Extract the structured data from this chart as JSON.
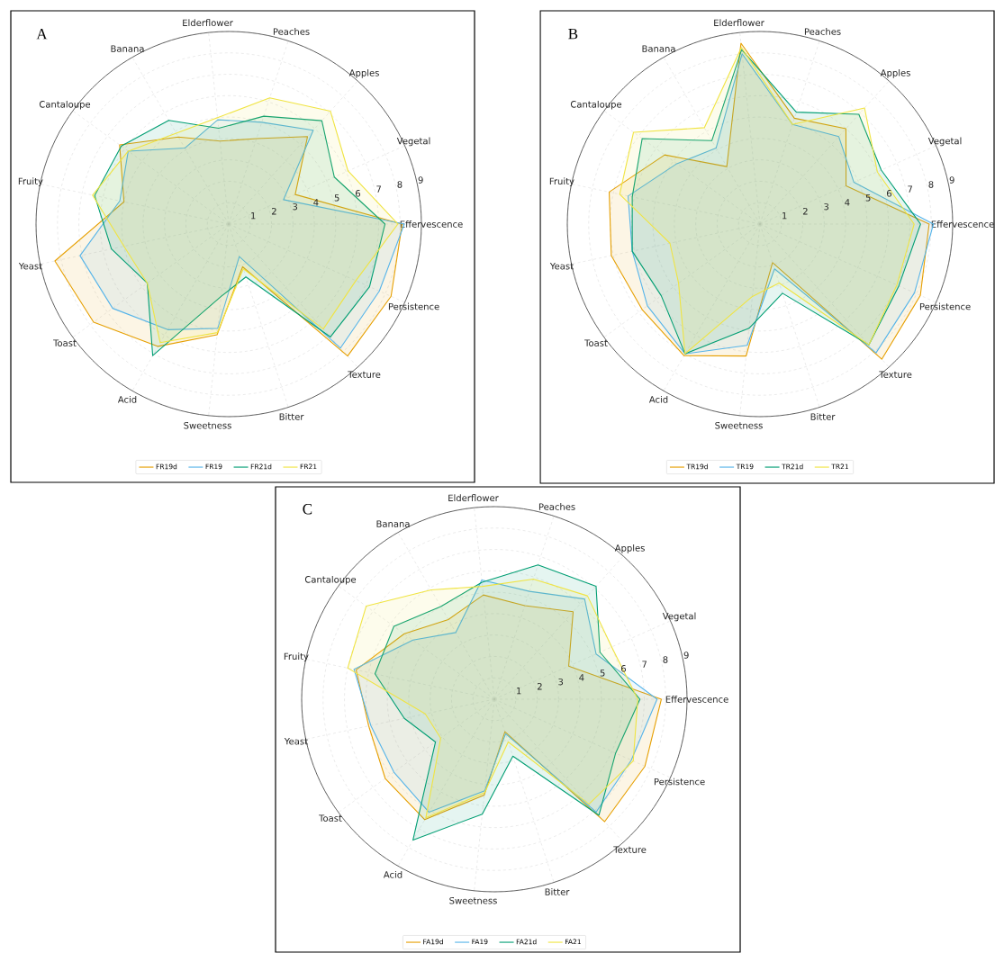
{
  "chart_data": [
    {
      "type": "radar",
      "title": "A",
      "categories": [
        "Elderflower",
        "Peaches",
        "Apples",
        "Vegetal",
        "Effervescence",
        "Persistence",
        "Texture",
        "Bitter",
        "Sweetness",
        "Acid",
        "Toast",
        "Yeast",
        "Fruity",
        "Cantaloupe",
        "Banana"
      ],
      "ylim": [
        0,
        9
      ],
      "yticks": [
        1,
        2,
        3,
        4,
        5,
        6,
        7,
        8,
        9
      ],
      "grid": true,
      "legend": "bottom",
      "series": [
        {
          "name": "FR19d",
          "color": "#e69f00",
          "values": [
            3.9,
            4.2,
            5.5,
            3.4,
            8.1,
            8.3,
            8.3,
            2.1,
            5.2,
            6.6,
            7.8,
            8.3,
            5.0,
            6.3,
            4.7
          ]
        },
        {
          "name": "FR19",
          "color": "#56b4e9",
          "values": [
            4.9,
            5.0,
            5.9,
            2.8,
            8.2,
            7.7,
            7.8,
            1.6,
            4.9,
            5.7,
            6.7,
            7.1,
            5.2,
            5.8,
            4.1
          ]
        },
        {
          "name": "FR21d",
          "color": "#009e73",
          "values": [
            4.5,
            5.3,
            6.5,
            5.4,
            7.3,
            7.2,
            7.1,
            2.6,
            3.4,
            7.1,
            4.7,
            5.6,
            6.4,
            6.2,
            5.6
          ]
        },
        {
          "name": "FR21",
          "color": "#f0e442",
          "values": [
            5.0,
            6.2,
            7.1,
            6.1,
            7.9,
            6.5,
            6.6,
            2.2,
            5.1,
            6.4,
            4.7,
            5.0,
            6.5,
            5.8,
            4.9
          ]
        }
      ]
    },
    {
      "type": "radar",
      "title": "B",
      "categories": [
        "Elderflower",
        "Peaches",
        "Apples",
        "Vegetal",
        "Effervescence",
        "Persistence",
        "Texture",
        "Bitter",
        "Sweetness",
        "Acid",
        "Toast",
        "Yeast",
        "Fruity",
        "Cantaloupe",
        "Banana"
      ],
      "ylim": [
        0,
        9
      ],
      "yticks": [
        1,
        2,
        3,
        4,
        5,
        6,
        7,
        8,
        9
      ],
      "grid": true,
      "legend": "bottom",
      "series": [
        {
          "name": "TR19d",
          "color": "#e69f00",
          "values": [
            8.5,
            5.2,
            6.0,
            4.4,
            7.9,
            8.2,
            8.5,
            1.9,
            6.2,
            7.1,
            6.8,
            7.1,
            7.2,
            5.5,
            3.1
          ]
        },
        {
          "name": "TR19",
          "color": "#56b4e9",
          "values": [
            8.0,
            4.9,
            5.5,
            4.8,
            8.1,
            7.9,
            8.1,
            2.2,
            5.7,
            7.0,
            6.5,
            6.1,
            6.3,
            4.8,
            4.1
          ]
        },
        {
          "name": "TR21d",
          "color": "#009e73",
          "values": [
            8.2,
            5.5,
            6.9,
            6.2,
            7.5,
            7.1,
            7.6,
            3.4,
            4.9,
            7.0,
            5.7,
            6.1,
            6.1,
            6.8,
            4.5
          ]
        },
        {
          "name": "TR21",
          "color": "#f0e442",
          "values": [
            8.3,
            4.9,
            7.3,
            6.0,
            7.2,
            7.0,
            7.6,
            2.9,
            3.4,
            7.0,
            4.7,
            4.3,
            6.7,
            7.3,
            5.2
          ]
        }
      ]
    },
    {
      "type": "radar",
      "title": "C",
      "categories": [
        "Elderflower",
        "Peaches",
        "Apples",
        "Vegetal",
        "Effervescence",
        "Persistence",
        "Texture",
        "Bitter",
        "Sweetness",
        "Acid",
        "Toast",
        "Yeast",
        "Fruity",
        "Cantaloupe",
        "Banana"
      ],
      "ylim": [
        0,
        9
      ],
      "yticks": [
        1,
        2,
        3,
        4,
        5,
        6,
        7,
        8,
        9
      ],
      "grid": true,
      "legend": "bottom",
      "series": [
        {
          "name": "FA19d",
          "color": "#e69f00",
          "values": [
            4.9,
            4.6,
            5.5,
            3.8,
            7.8,
            7.7,
            7.7,
            1.6,
            4.5,
            6.5,
            6.3,
            6.0,
            6.6,
            5.2,
            4.3
          ]
        },
        {
          "name": "FA19",
          "color": "#56b4e9",
          "values": [
            5.6,
            5.3,
            6.3,
            5.2,
            7.6,
            7.0,
            7.1,
            1.7,
            4.3,
            6.1,
            5.8,
            5.9,
            6.7,
            4.7,
            3.6
          ]
        },
        {
          "name": "FA21d",
          "color": "#009e73",
          "values": [
            5.5,
            6.6,
            7.1,
            5.4,
            6.8,
            6.2,
            7.3,
            2.8,
            5.4,
            7.6,
            3.4,
            4.3,
            5.7,
            5.8,
            5.0
          ]
        },
        {
          "name": "FA21",
          "color": "#f0e442",
          "values": [
            5.3,
            5.9,
            6.5,
            6.0,
            6.7,
            7.1,
            6.6,
            2.1,
            4.4,
            6.4,
            3.1,
            3.3,
            7.0,
            7.4,
            5.9
          ]
        }
      ]
    }
  ]
}
